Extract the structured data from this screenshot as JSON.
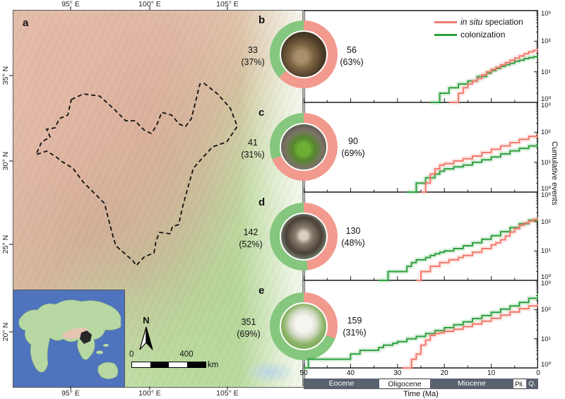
{
  "figure": {
    "panel_labels": {
      "a": "a",
      "b": "b",
      "c": "c",
      "d": "d",
      "e": "e"
    },
    "map": {
      "top_ticks": [
        "95° E",
        "100° E",
        "105° E"
      ],
      "bottom_ticks": [
        "95° E",
        "100° E",
        "105° E"
      ],
      "left_ticks": [
        "35° N",
        "30° N",
        "25° N",
        "20° N"
      ],
      "north_label": "N",
      "scalebar": {
        "start": "0",
        "end": "400",
        "unit": "km"
      }
    },
    "legend": {
      "items": [
        {
          "italic": "in situ",
          "text": " speciation",
          "color": "#f2796c"
        },
        {
          "italic": "",
          "text": "colonization",
          "color": "#2ca03c"
        }
      ]
    },
    "colors": {
      "speciation": "#f2796c",
      "colonization": "#2ca03c",
      "donut_green": "#85c77e",
      "donut_salmon": "#f29a8e",
      "epoch_dark": "#5a6270"
    },
    "y_axis_label": "Cumulative events",
    "x_axis_label": "Time (Ma)",
    "x_ticks": [
      "50",
      "40",
      "30",
      "20",
      "10",
      "0"
    ],
    "y_tick_labels": [
      "10³",
      "10²",
      "10¹",
      "10⁰"
    ],
    "epochs": [
      {
        "name": "Eocene",
        "start": 50,
        "end": 33.9,
        "style": "dark"
      },
      {
        "name": "Oligocene",
        "start": 33.9,
        "end": 23.03,
        "style": "light"
      },
      {
        "name": "Miocene",
        "start": 23.03,
        "end": 5.33,
        "style": "dark"
      },
      {
        "name": "Pli.",
        "start": 5.33,
        "end": 2.58,
        "style": "light"
      },
      {
        "name": "Q.",
        "start": 2.58,
        "end": 0,
        "style": "dark"
      }
    ],
    "panels": [
      {
        "id": "b",
        "photo": "frog",
        "left_count": "33",
        "left_pct": "(37%)",
        "right_count": "56",
        "right_pct": "(63%)",
        "salmon_pct": 63
      },
      {
        "id": "c",
        "photo": "lizard",
        "left_count": "41",
        "left_pct": "(31%)",
        "right_count": "90",
        "right_pct": "(69%)",
        "salmon_pct": 69
      },
      {
        "id": "d",
        "photo": "monkey",
        "left_count": "142",
        "left_pct": "(52%)",
        "right_count": "130",
        "right_pct": "(48%)",
        "salmon_pct": 48
      },
      {
        "id": "e",
        "photo": "bird",
        "left_count": "351",
        "left_pct": "(69%)",
        "right_count": "159",
        "right_pct": "(31%)",
        "salmon_pct": 31
      }
    ]
  },
  "chart_data": [
    {
      "id": "b",
      "type": "line",
      "x_axis": {
        "label": "Time (Ma)",
        "range": [
          50,
          0
        ]
      },
      "y_axis": {
        "label": "Cumulative events",
        "scale": "log",
        "range": [
          1,
          1000
        ]
      },
      "totals": {
        "colonization": 33,
        "colonization_pct": 37,
        "in_situ_speciation": 56,
        "in_situ_speciation_pct": 63
      },
      "series": [
        {
          "name": "colonization",
          "color": "#2ca03c",
          "points": [
            [
              23,
              1
            ],
            [
              21,
              2
            ],
            [
              19,
              3
            ],
            [
              17,
              4
            ],
            [
              15,
              5
            ],
            [
              13,
              7
            ],
            [
              11,
              9
            ],
            [
              10,
              11
            ],
            [
              9,
              13
            ],
            [
              8,
              15
            ],
            [
              7,
              17
            ],
            [
              6,
              19
            ],
            [
              5,
              22
            ],
            [
              4,
              24
            ],
            [
              3,
              27
            ],
            [
              2,
              29
            ],
            [
              1,
              31
            ],
            [
              0,
              33
            ]
          ]
        },
        {
          "name": "in situ speciation",
          "color": "#f2796c",
          "points": [
            [
              19,
              1
            ],
            [
              17,
              2
            ],
            [
              16,
              3
            ],
            [
              15,
              4
            ],
            [
              14,
              5
            ],
            [
              13,
              6
            ],
            [
              12,
              8
            ],
            [
              11,
              10
            ],
            [
              10,
              12
            ],
            [
              9,
              14
            ],
            [
              8,
              17
            ],
            [
              7,
              20
            ],
            [
              6,
              24
            ],
            [
              5,
              28
            ],
            [
              4,
              33
            ],
            [
              3,
              39
            ],
            [
              2,
              45
            ],
            [
              1,
              50
            ],
            [
              0,
              56
            ]
          ]
        }
      ]
    },
    {
      "id": "c",
      "type": "line",
      "x_axis": {
        "label": "Time (Ma)",
        "range": [
          50,
          0
        ]
      },
      "y_axis": {
        "label": "Cumulative events",
        "scale": "log",
        "range": [
          1,
          1000
        ]
      },
      "totals": {
        "colonization": 41,
        "colonization_pct": 31,
        "in_situ_speciation": 90,
        "in_situ_speciation_pct": 69
      },
      "series": [
        {
          "name": "colonization",
          "color": "#2ca03c",
          "points": [
            [
              28,
              1
            ],
            [
              26,
              2
            ],
            [
              24,
              3
            ],
            [
              22,
              4
            ],
            [
              21,
              5
            ],
            [
              20,
              6
            ],
            [
              18,
              7
            ],
            [
              16,
              8
            ],
            [
              14,
              10
            ],
            [
              12,
              12
            ],
            [
              10,
              15
            ],
            [
              8,
              19
            ],
            [
              6,
              24
            ],
            [
              4,
              29
            ],
            [
              2,
              35
            ],
            [
              0,
              41
            ]
          ]
        },
        {
          "name": "in situ speciation",
          "color": "#f2796c",
          "points": [
            [
              25,
              1
            ],
            [
              24,
              2
            ],
            [
              23,
              4
            ],
            [
              22,
              6
            ],
            [
              21,
              8
            ],
            [
              20,
              9
            ],
            [
              18,
              11
            ],
            [
              16,
              13
            ],
            [
              14,
              16
            ],
            [
              12,
              21
            ],
            [
              10,
              27
            ],
            [
              8,
              35
            ],
            [
              6,
              45
            ],
            [
              4,
              58
            ],
            [
              2,
              73
            ],
            [
              0,
              90
            ]
          ]
        }
      ]
    },
    {
      "id": "d",
      "type": "line",
      "x_axis": {
        "label": "Time (Ma)",
        "range": [
          50,
          0
        ]
      },
      "y_axis": {
        "label": "Cumulative events",
        "scale": "log",
        "range": [
          1,
          1000
        ]
      },
      "totals": {
        "colonization": 142,
        "colonization_pct": 52,
        "in_situ_speciation": 130,
        "in_situ_speciation_pct": 48
      },
      "series": [
        {
          "name": "colonization",
          "color": "#2ca03c",
          "points": [
            [
              34,
              1
            ],
            [
              32,
              2
            ],
            [
              28,
              3
            ],
            [
              27,
              4
            ],
            [
              26,
              5
            ],
            [
              24,
              6
            ],
            [
              23,
              7
            ],
            [
              22,
              8
            ],
            [
              21,
              9
            ],
            [
              20,
              10
            ],
            [
              18,
              12
            ],
            [
              16,
              15
            ],
            [
              14,
              19
            ],
            [
              12,
              25
            ],
            [
              10,
              33
            ],
            [
              8,
              45
            ],
            [
              6,
              62
            ],
            [
              4,
              84
            ],
            [
              2,
              110
            ],
            [
              0,
              142
            ]
          ]
        },
        {
          "name": "in situ speciation",
          "color": "#f2796c",
          "points": [
            [
              26,
              1
            ],
            [
              25,
              2
            ],
            [
              23,
              3
            ],
            [
              21,
              4
            ],
            [
              19,
              5
            ],
            [
              17,
              6
            ],
            [
              16,
              7
            ],
            [
              14,
              9
            ],
            [
              12,
              12
            ],
            [
              10,
              16
            ],
            [
              9,
              19
            ],
            [
              8,
              24
            ],
            [
              7,
              32
            ],
            [
              6,
              44
            ],
            [
              5,
              58
            ],
            [
              4,
              74
            ],
            [
              3,
              89
            ],
            [
              2,
              104
            ],
            [
              1,
              117
            ],
            [
              0,
              130
            ]
          ]
        }
      ]
    },
    {
      "id": "e",
      "type": "line",
      "x_axis": {
        "label": "Time (Ma)",
        "range": [
          50,
          0
        ]
      },
      "y_axis": {
        "label": "Cumulative events",
        "scale": "log",
        "range": [
          1,
          1000
        ]
      },
      "totals": {
        "colonization": 351,
        "colonization_pct": 69,
        "in_situ_speciation": 159,
        "in_situ_speciation_pct": 31
      },
      "series": [
        {
          "name": "colonization",
          "color": "#2ca03c",
          "points": [
            [
              50,
              1
            ],
            [
              49,
              2
            ],
            [
              40,
              3
            ],
            [
              38,
              4
            ],
            [
              34,
              5
            ],
            [
              33,
              6
            ],
            [
              31,
              7
            ],
            [
              30,
              8
            ],
            [
              28,
              10
            ],
            [
              26,
              12
            ],
            [
              24,
              15
            ],
            [
              22,
              19
            ],
            [
              20,
              24
            ],
            [
              18,
              30
            ],
            [
              16,
              38
            ],
            [
              14,
              49
            ],
            [
              12,
              62
            ],
            [
              10,
              80
            ],
            [
              8,
              103
            ],
            [
              6,
              133
            ],
            [
              4,
              175
            ],
            [
              2,
              243
            ],
            [
              0,
              351
            ]
          ]
        },
        {
          "name": "in situ speciation",
          "color": "#f2796c",
          "points": [
            [
              29,
              1
            ],
            [
              27,
              2
            ],
            [
              26,
              3
            ],
            [
              25,
              6
            ],
            [
              24,
              9
            ],
            [
              23,
              13
            ],
            [
              22,
              15
            ],
            [
              21,
              16
            ],
            [
              20,
              18
            ],
            [
              18,
              21
            ],
            [
              16,
              26
            ],
            [
              14,
              32
            ],
            [
              12,
              40
            ],
            [
              10,
              50
            ],
            [
              8,
              64
            ],
            [
              6,
              83
            ],
            [
              4,
              107
            ],
            [
              2,
              133
            ],
            [
              0,
              159
            ]
          ]
        }
      ]
    }
  ]
}
